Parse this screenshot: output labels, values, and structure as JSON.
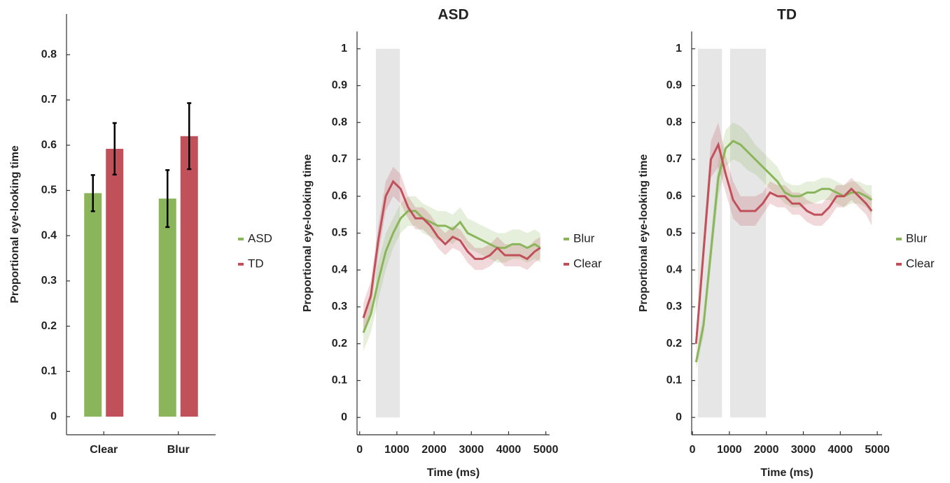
{
  "chart_data": [
    {
      "type": "bar",
      "ylabel": "Proportional eye-looking time",
      "categories": [
        "Clear",
        "Blur"
      ],
      "series": [
        {
          "name": "ASD",
          "color": "#8ab55a",
          "values": [
            0.494,
            0.482
          ],
          "errors": [
            0.04,
            0.063
          ]
        },
        {
          "name": "TD",
          "color": "#c0505a",
          "values": [
            0.592,
            0.62
          ],
          "errors": [
            0.057,
            0.073
          ]
        }
      ],
      "ylim": [
        -0.04,
        0.89
      ],
      "yticks": [
        0,
        0.1,
        0.2,
        0.3,
        0.4,
        0.5,
        0.6,
        0.7,
        0.8
      ]
    },
    {
      "type": "line",
      "title": "ASD",
      "xlabel": "Time (ms)",
      "ylabel": "Proportional eye-looking time",
      "x": [
        100,
        300,
        500,
        700,
        900,
        1100,
        1300,
        1500,
        1700,
        1900,
        2100,
        2300,
        2500,
        2700,
        2900,
        3100,
        3300,
        3500,
        3700,
        3900,
        4100,
        4300,
        4500,
        4700,
        4850
      ],
      "series": [
        {
          "name": "Blur",
          "color": "#8ab55a",
          "values": [
            0.23,
            0.28,
            0.37,
            0.45,
            0.5,
            0.54,
            0.56,
            0.56,
            0.54,
            0.53,
            0.52,
            0.52,
            0.51,
            0.53,
            0.5,
            0.49,
            0.48,
            0.47,
            0.46,
            0.46,
            0.47,
            0.47,
            0.46,
            0.47,
            0.46
          ],
          "errors": [
            0.05,
            0.05,
            0.05,
            0.05,
            0.04,
            0.04,
            0.04,
            0.04,
            0.04,
            0.04,
            0.04,
            0.04,
            0.04,
            0.04,
            0.04,
            0.04,
            0.04,
            0.04,
            0.04,
            0.04,
            0.04,
            0.04,
            0.04,
            0.04,
            0.04
          ]
        },
        {
          "name": "Clear",
          "color": "#c0505a",
          "values": [
            0.27,
            0.33,
            0.48,
            0.6,
            0.64,
            0.62,
            0.57,
            0.54,
            0.54,
            0.52,
            0.49,
            0.47,
            0.49,
            0.48,
            0.45,
            0.43,
            0.43,
            0.44,
            0.46,
            0.44,
            0.44,
            0.44,
            0.43,
            0.45,
            0.46
          ],
          "errors": [
            0.04,
            0.04,
            0.04,
            0.04,
            0.04,
            0.04,
            0.03,
            0.03,
            0.03,
            0.03,
            0.03,
            0.03,
            0.03,
            0.03,
            0.03,
            0.03,
            0.03,
            0.03,
            0.03,
            0.03,
            0.03,
            0.03,
            0.03,
            0.03,
            0.03
          ]
        }
      ],
      "shaded_regions": [
        [
          436,
          1080
        ]
      ],
      "shade_color": "#e6e6e6",
      "xlim": [
        -70,
        5100
      ],
      "xticks": [
        0,
        1000,
        2000,
        3000,
        4000,
        5000
      ],
      "ylim": [
        -0.047,
        1.047
      ],
      "yticks": [
        0,
        0.1,
        0.2,
        0.3,
        0.4,
        0.5,
        0.6,
        0.7,
        0.8,
        0.9,
        1
      ]
    },
    {
      "type": "line",
      "title": "TD",
      "xlabel": "Time (ms)",
      "ylabel": "Proportional eye-looking time",
      "x": [
        100,
        300,
        500,
        700,
        900,
        1100,
        1300,
        1500,
        1700,
        1900,
        2100,
        2300,
        2500,
        2700,
        2900,
        3100,
        3300,
        3500,
        3700,
        3900,
        4100,
        4300,
        4500,
        4700,
        4850
      ],
      "series": [
        {
          "name": "Blur",
          "color": "#8ab55a",
          "values": [
            0.15,
            0.25,
            0.45,
            0.65,
            0.73,
            0.75,
            0.74,
            0.72,
            0.7,
            0.68,
            0.66,
            0.64,
            0.61,
            0.6,
            0.6,
            0.61,
            0.61,
            0.62,
            0.62,
            0.61,
            0.6,
            0.61,
            0.61,
            0.6,
            0.59
          ],
          "errors": [
            0.02,
            0.03,
            0.04,
            0.05,
            0.05,
            0.05,
            0.05,
            0.05,
            0.04,
            0.04,
            0.04,
            0.04,
            0.03,
            0.03,
            0.03,
            0.03,
            0.03,
            0.03,
            0.03,
            0.03,
            0.03,
            0.03,
            0.03,
            0.03,
            0.04
          ]
        },
        {
          "name": "Clear",
          "color": "#c0505a",
          "values": [
            0.2,
            0.45,
            0.7,
            0.74,
            0.66,
            0.59,
            0.56,
            0.56,
            0.56,
            0.58,
            0.61,
            0.6,
            0.6,
            0.58,
            0.58,
            0.56,
            0.55,
            0.55,
            0.57,
            0.6,
            0.6,
            0.62,
            0.6,
            0.58,
            0.56
          ],
          "errors": [
            0.03,
            0.04,
            0.05,
            0.06,
            0.05,
            0.05,
            0.04,
            0.04,
            0.04,
            0.03,
            0.03,
            0.03,
            0.03,
            0.03,
            0.03,
            0.03,
            0.03,
            0.03,
            0.03,
            0.03,
            0.03,
            0.03,
            0.03,
            0.03,
            0.04
          ]
        }
      ],
      "shaded_regions": [
        [
          150,
          800
        ],
        [
          1020,
          1990
        ]
      ],
      "shade_color": "#e6e6e6",
      "xlim": [
        -20,
        5130
      ],
      "xticks": [
        0,
        1000,
        2000,
        3000,
        4000,
        5000
      ],
      "ylim": [
        -0.047,
        1.047
      ],
      "yticks": [
        0,
        0.1,
        0.2,
        0.3,
        0.4,
        0.5,
        0.6,
        0.7,
        0.8,
        0.9,
        1
      ]
    }
  ]
}
